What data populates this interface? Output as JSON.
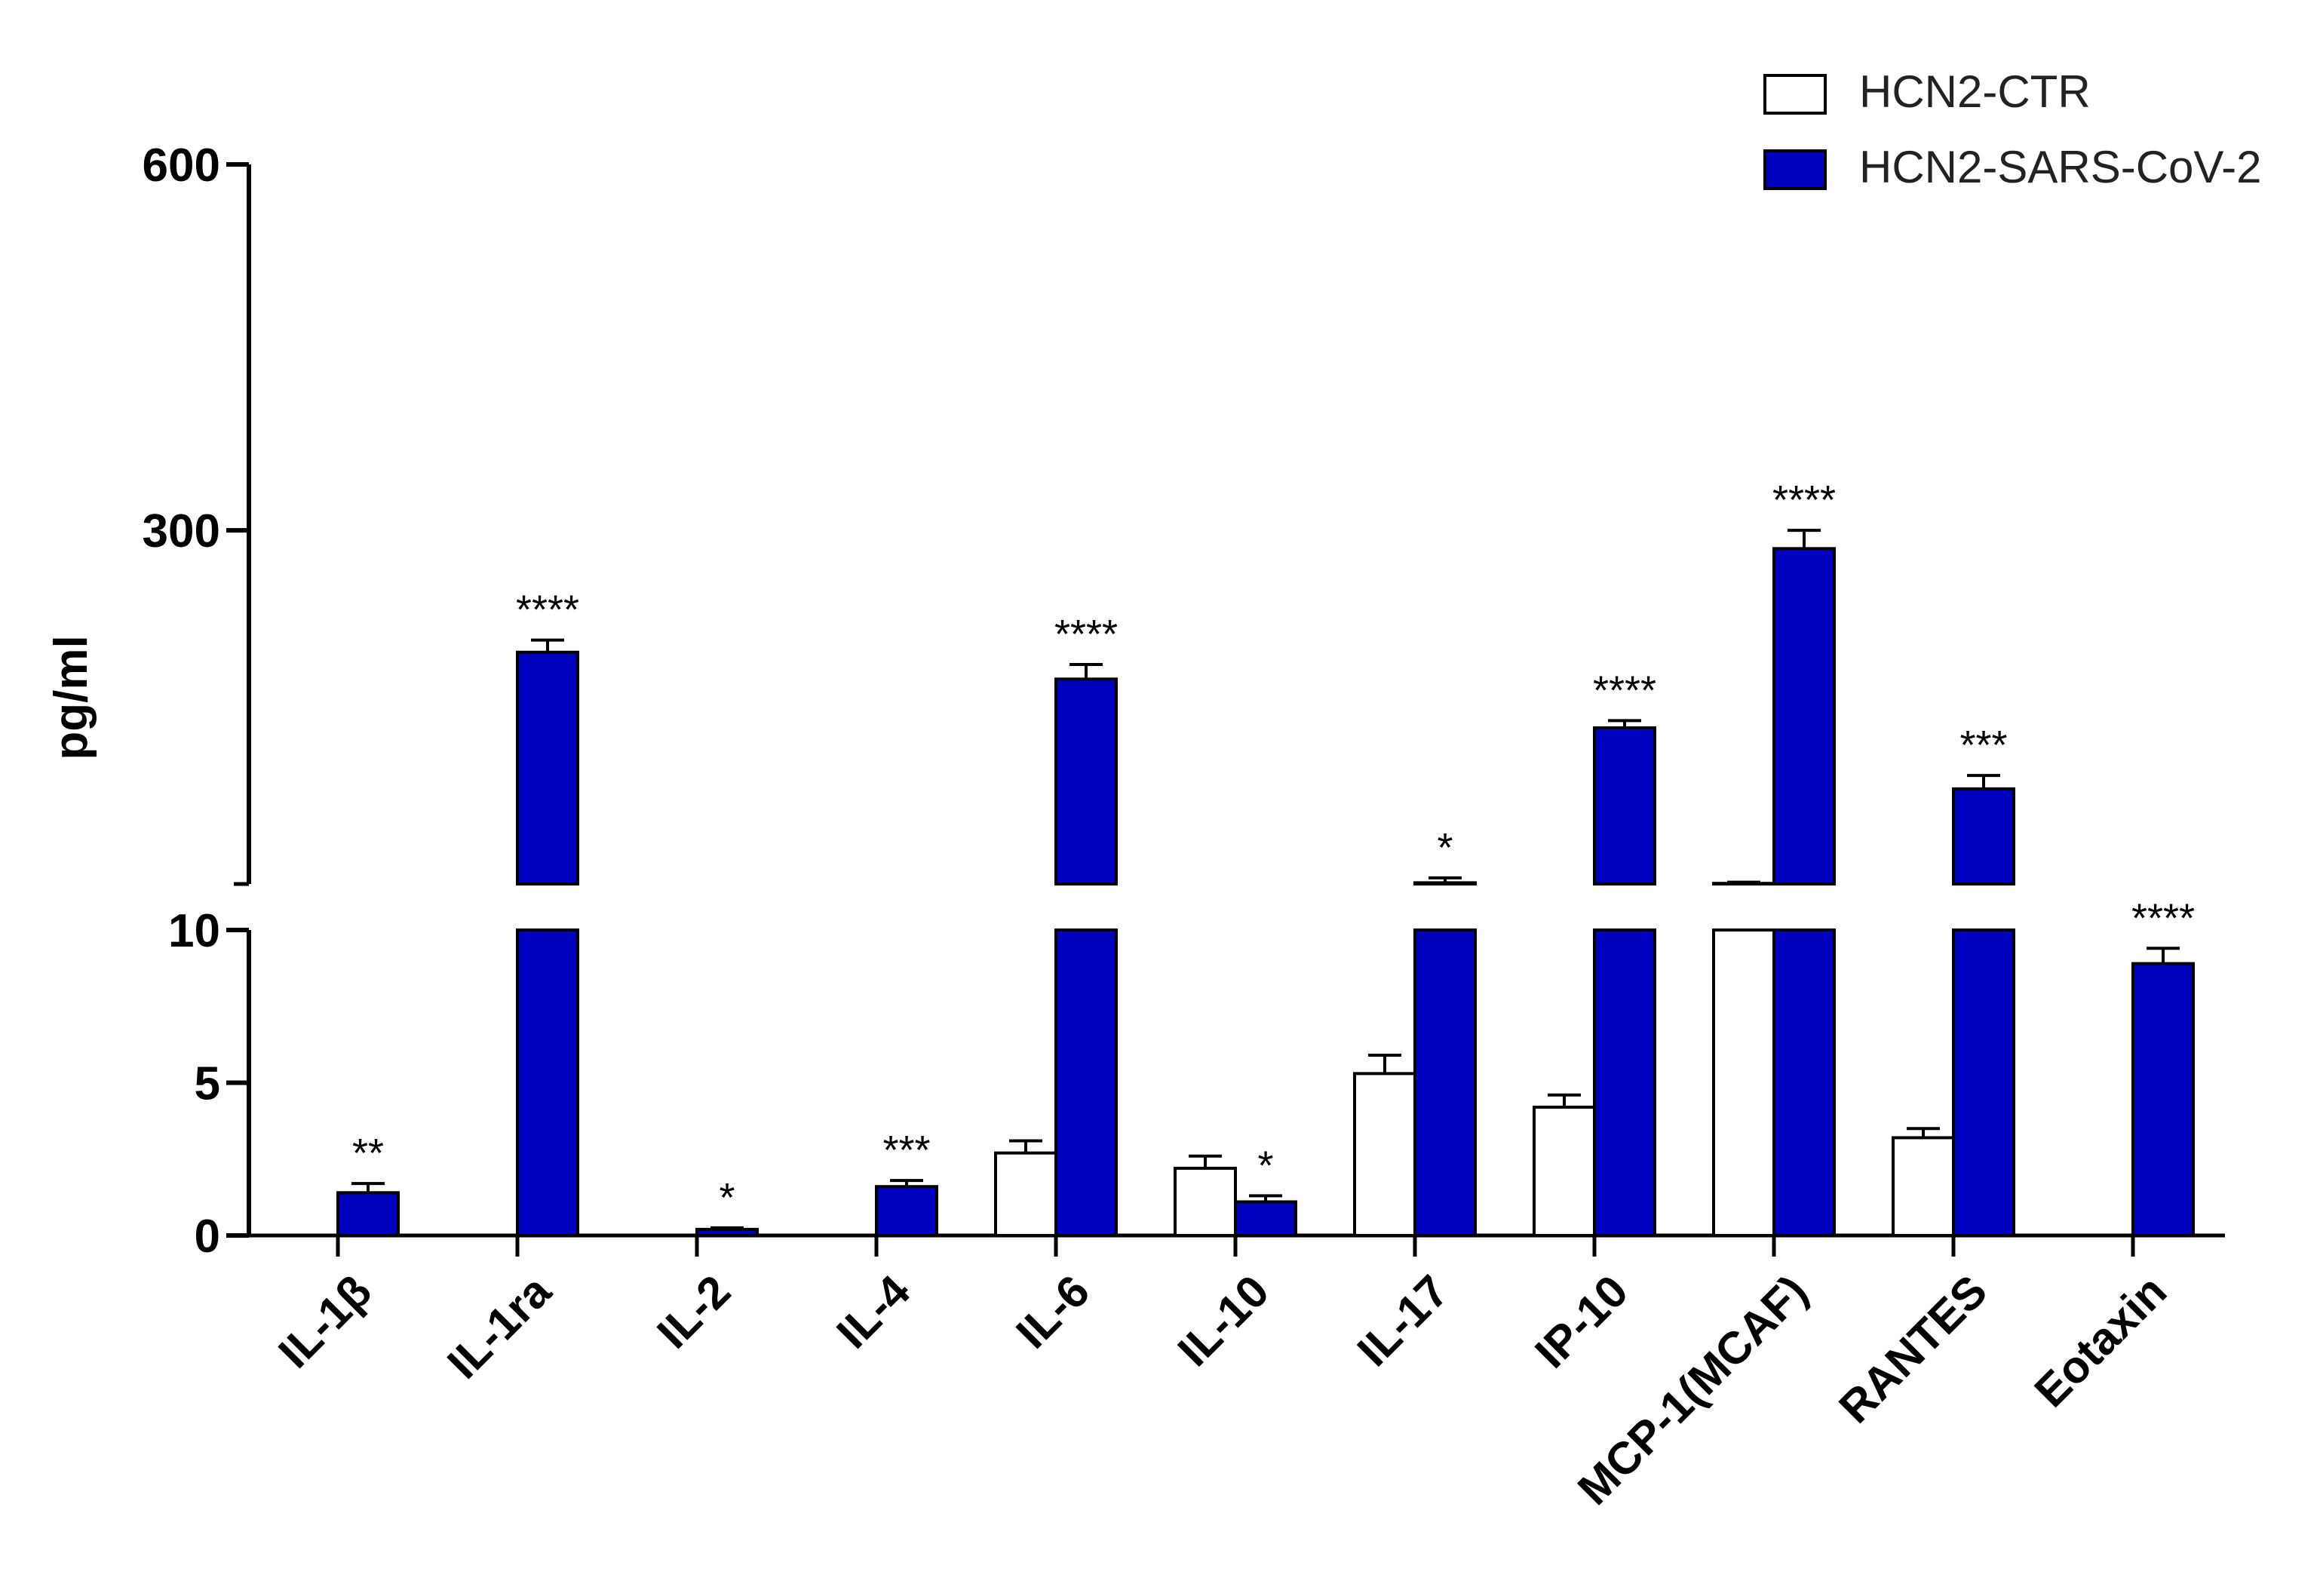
{
  "chart_data": {
    "type": "bar",
    "ylabel": "pg/ml",
    "categories": [
      "IL-1β",
      "IL-1ra",
      "IL-2",
      "IL-4",
      "IL-6",
      "IL-10",
      "IL-17",
      "IP-10",
      "MCP-1(MCAF)",
      "RANTES",
      "Eotaxin"
    ],
    "series": [
      {
        "name": "HCN2-CTR",
        "color": "#ffffff",
        "values": [
          0,
          0,
          0,
          0,
          2.7,
          2.2,
          5.3,
          4.2,
          10.5,
          3.2,
          0
        ],
        "errors": [
          0,
          0,
          0,
          0,
          0.4,
          0.4,
          0.6,
          0.4,
          1,
          0.3,
          0
        ]
      },
      {
        "name": "HCN2-SARS-CoV-2",
        "color": "#0000bf",
        "values": [
          1.4,
          200,
          0.2,
          1.6,
          178,
          1.1,
          11,
          138,
          285,
          88,
          8.9
        ],
        "errors": [
          0.3,
          10,
          0.05,
          0.2,
          12,
          0.2,
          4,
          6,
          15,
          11,
          0.5
        ]
      }
    ],
    "significance": [
      "**",
      "****",
      "*",
      "***",
      "****",
      "*",
      "*",
      "****",
      "****",
      "***",
      "****"
    ],
    "axis_upper": {
      "ylim": [
        10,
        600
      ],
      "ticks": [
        300,
        600
      ],
      "tick_labels": [
        "300",
        "600"
      ]
    },
    "axis_lower": {
      "ylim": [
        0,
        10
      ],
      "ticks": [
        0,
        5,
        10
      ],
      "tick_labels": [
        "0",
        "5",
        "10"
      ]
    },
    "legend_position": "top-right",
    "grid": false
  }
}
